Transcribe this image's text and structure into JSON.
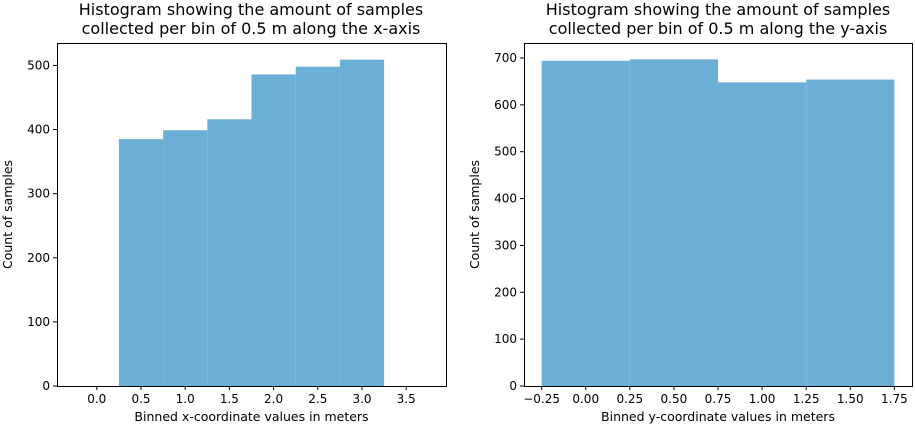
{
  "chart_data": [
    {
      "type": "bar",
      "title_lines": [
        "Histogram showing the amount of samples",
        "collected per bin of 0.5 m along the x-axis"
      ],
      "xlabel": "Binned x-coordinate values in meters",
      "ylabel": "Count of samples",
      "bins": [
        {
          "start": 0.25,
          "end": 0.75,
          "value": 385
        },
        {
          "start": 0.75,
          "end": 1.25,
          "value": 399
        },
        {
          "start": 1.25,
          "end": 1.75,
          "value": 416
        },
        {
          "start": 1.75,
          "end": 2.25,
          "value": 486
        },
        {
          "start": 2.25,
          "end": 2.75,
          "value": 498
        },
        {
          "start": 2.75,
          "end": 3.25,
          "value": 509
        }
      ],
      "xlim": [
        -0.45,
        3.95
      ],
      "ylim": [
        0,
        535
      ],
      "xticks": [
        0.0,
        0.5,
        1.0,
        1.5,
        2.0,
        2.5,
        3.0,
        3.5
      ],
      "xtick_labels": [
        "0.0",
        "0.5",
        "1.0",
        "1.5",
        "2.0",
        "2.5",
        "3.0",
        "3.5"
      ],
      "yticks": [
        0,
        100,
        200,
        300,
        400,
        500
      ],
      "ytick_labels": [
        "0",
        "100",
        "200",
        "300",
        "400",
        "500"
      ],
      "bar_color": "#6baed6",
      "grid": false
    },
    {
      "type": "bar",
      "title_lines": [
        "Histogram showing the amount of samples",
        "collected per bin of 0.5 m along the y-axis"
      ],
      "xlabel": "Binned y-coordinate values in meters",
      "ylabel": "Count of samples",
      "bins": [
        {
          "start": -0.25,
          "end": 0.25,
          "value": 694
        },
        {
          "start": 0.25,
          "end": 0.75,
          "value": 697
        },
        {
          "start": 0.75,
          "end": 1.25,
          "value": 648
        },
        {
          "start": 1.25,
          "end": 1.75,
          "value": 654
        }
      ],
      "xlim": [
        -0.35,
        1.85
      ],
      "ylim": [
        0,
        732
      ],
      "xticks": [
        -0.25,
        0.0,
        0.25,
        0.5,
        0.75,
        1.0,
        1.25,
        1.5,
        1.75
      ],
      "xtick_labels": [
        "−0.25",
        "0.00",
        "0.25",
        "0.50",
        "0.75",
        "1.00",
        "1.25",
        "1.50",
        "1.75"
      ],
      "yticks": [
        0,
        100,
        200,
        300,
        400,
        500,
        600,
        700
      ],
      "ytick_labels": [
        "0",
        "100",
        "200",
        "300",
        "400",
        "500",
        "600",
        "700"
      ],
      "bar_color": "#6baed6",
      "grid": false
    }
  ]
}
